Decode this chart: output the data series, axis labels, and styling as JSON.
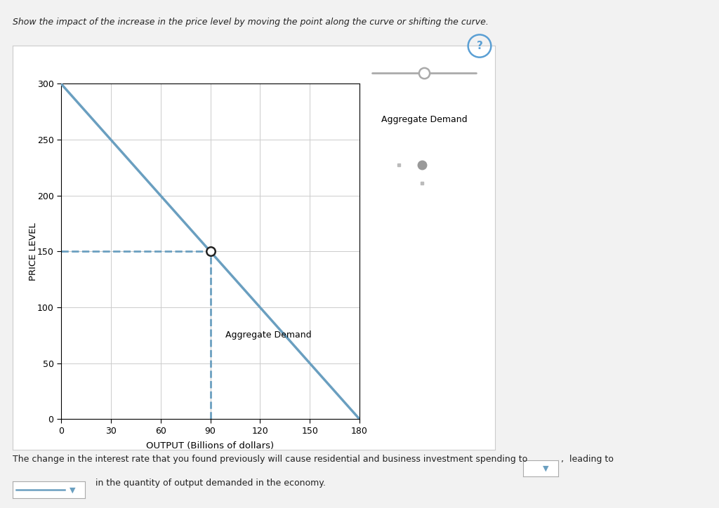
{
  "title_text": "Show the impact of the increase in the price level by moving the point along the curve or shifting the curve.",
  "xlabel": "OUTPUT (Billions of dollars)",
  "ylabel": "PRICE LEVEL",
  "xlim": [
    0,
    180
  ],
  "ylim": [
    0,
    300
  ],
  "xticks": [
    0,
    30,
    60,
    90,
    120,
    150,
    180
  ],
  "yticks": [
    0,
    50,
    100,
    150,
    200,
    250,
    300
  ],
  "ad_line_x": [
    0,
    180
  ],
  "ad_line_y": [
    300,
    0
  ],
  "ad_color": "#6a9fc0",
  "ad_linewidth": 2.5,
  "ad_label": "Aggregate Demand",
  "point_x": 90,
  "point_y": 150,
  "dashed_color": "#6a9fc0",
  "point_color": "white",
  "point_edge_color": "#222222",
  "point_size": 9,
  "dashed_linewidth": 2.0,
  "grid_color": "#cccccc",
  "bottom_text1": "The change in the interest rate that you found previously will cause residential and business investment spending to",
  "bottom_text2": "  in the quantity of output demanded in the economy.",
  "question_mark_color": "#5a9fd4",
  "slider_color": "#aaaaaa",
  "dot_color": "#999999",
  "fig_bg": "#f2f2f2",
  "panel_bg": "#ffffff",
  "panel_border": "#cccccc"
}
